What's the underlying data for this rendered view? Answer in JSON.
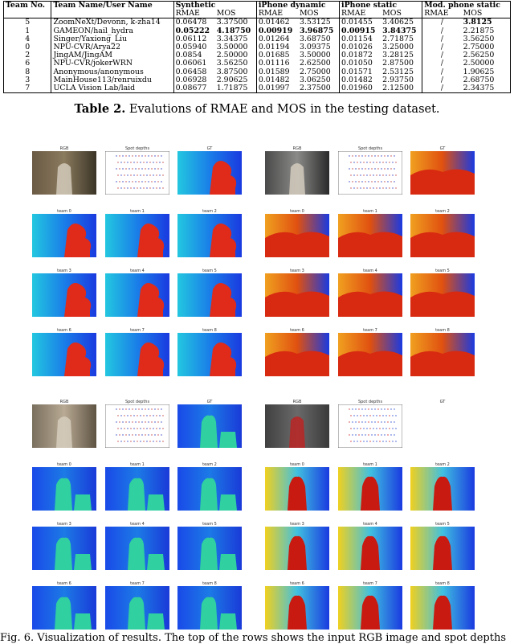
{
  "table": {
    "headers": {
      "team_no": "Team No.",
      "team_name": "Team Name/User Name",
      "synthetic": "Synthetic",
      "iphone_dynamic": "iPhone dynamic",
      "iphone_static": "iPhone static",
      "mod_phone_static": "Mod. phone static",
      "rmae": "RMAE",
      "mos": "MOS"
    },
    "rows": [
      {
        "no": "5",
        "name": "ZoomNeXt/Devonn, k-zha14",
        "s_rmae": "0.06478",
        "s_mos": "3.37500",
        "d_rmae": "0.01462",
        "d_mos": "3.53125",
        "st_rmae": "0.01455",
        "st_mos": "3.40625",
        "m_rmae": "/",
        "m_mos": "3.8125"
      },
      {
        "no": "1",
        "name": "GAMEON/hail_hydra",
        "s_rmae": "0.05222",
        "s_mos": "4.18750",
        "d_rmae": "0.00919",
        "d_mos": "3.96875",
        "st_rmae": "0.00915",
        "st_mos": "3.84375",
        "m_rmae": "/",
        "m_mos": "2.21875"
      },
      {
        "no": "4",
        "name": "Singer/Yaxiong_Liu",
        "s_rmae": "0.06112",
        "s_mos": "3.34375",
        "d_rmae": "0.01264",
        "d_mos": "3.68750",
        "st_rmae": "0.01154",
        "st_mos": "2.71875",
        "m_rmae": "/",
        "m_mos": "3.56250"
      },
      {
        "no": "0",
        "name": "NPU-CVR/Arya22",
        "s_rmae": "0.05940",
        "s_mos": "3.50000",
        "d_rmae": "0.01194",
        "d_mos": "3.09375",
        "st_rmae": "0.01026",
        "st_mos": "3.25000",
        "m_rmae": "/",
        "m_mos": "2.75000"
      },
      {
        "no": "2",
        "name": "JingAM/JingAM",
        "s_rmae": "0.0854",
        "s_mos": "2.50000",
        "d_rmae": "0.01685",
        "d_mos": "3.50000",
        "st_rmae": "0.01872",
        "st_mos": "3.28125",
        "m_rmae": "/",
        "m_mos": "2.56250"
      },
      {
        "no": "6",
        "name": "NPU-CVR/jokerWRN",
        "s_rmae": "0.06061",
        "s_mos": "3.56250",
        "d_rmae": "0.01116",
        "d_mos": "2.62500",
        "st_rmae": "0.01050",
        "st_mos": "2.87500",
        "m_rmae": "/",
        "m_mos": "2.50000"
      },
      {
        "no": "8",
        "name": "Anonymous/anonymous",
        "s_rmae": "0.06458",
        "s_mos": "3.87500",
        "d_rmae": "0.01589",
        "d_mos": "2.75000",
        "st_rmae": "0.01571",
        "st_mos": "2.53125",
        "m_rmae": "/",
        "m_mos": "1.90625"
      },
      {
        "no": "3",
        "name": "MainHouse113/renruixdu",
        "s_rmae": "0.06928",
        "s_mos": "2.90625",
        "d_rmae": "0.01482",
        "d_mos": "3.06250",
        "st_rmae": "0.01482",
        "st_mos": "2.93750",
        "m_rmae": "/",
        "m_mos": "2.68750"
      },
      {
        "no": "7",
        "name": "UCLA Vision Lab/laid",
        "s_rmae": "0.08677",
        "s_mos": "1.71875",
        "d_rmae": "0.01997",
        "d_mos": "2.37500",
        "st_rmae": "0.01960",
        "st_mos": "2.12500",
        "m_rmae": "/",
        "m_mos": "2.34375"
      }
    ]
  },
  "caption": {
    "label": "Table 2.",
    "text": " Evalutions of RMAE and MOS in the testing dataset."
  },
  "figure": {
    "labels": {
      "rgb": "RGB",
      "spot": "Spot depths",
      "gt": "GT",
      "team0": "team 0",
      "team1": "team 1",
      "team2": "team 2",
      "team3": "team 3",
      "team4": "team 4",
      "team5": "team 5",
      "team6": "team 6",
      "team7": "team 7",
      "team8": "team 8"
    }
  },
  "bottom_caption": "Fig. 6. Visualization of results. The top of the rows shows the input RGB image and spot depths"
}
